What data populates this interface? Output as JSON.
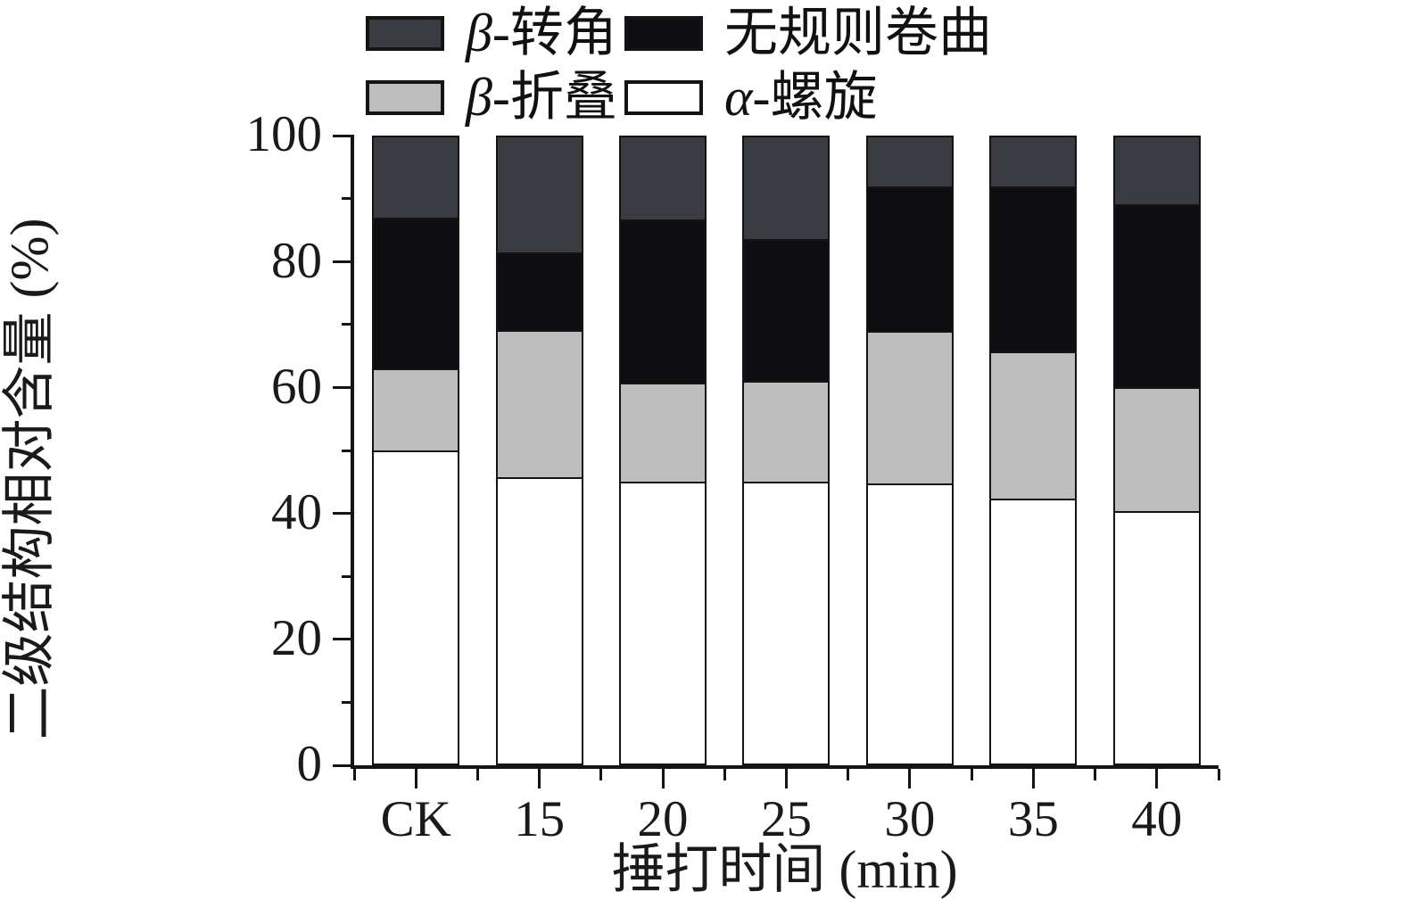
{
  "chart_data": {
    "type": "bar",
    "stacked": true,
    "orientation": "vertical",
    "categories": [
      "CK",
      "15",
      "20",
      "25",
      "30",
      "35",
      "40"
    ],
    "series": [
      {
        "name": "α-螺旋",
        "symbol": "α",
        "label_rest": "-螺旋",
        "color": "#ffffff",
        "values": [
          50.0,
          45.7,
          45.0,
          45.0,
          44.8,
          42.3,
          40.3
        ]
      },
      {
        "name": "β-折叠",
        "symbol": "β",
        "label_rest": "-折叠",
        "color": "#bdbdbd",
        "values": [
          13.0,
          23.4,
          15.8,
          16.0,
          24.2,
          23.4,
          19.8
        ]
      },
      {
        "name": "无规则卷曲",
        "symbol": "",
        "label_rest": "无规则卷曲",
        "color": "#0e0e10",
        "values": [
          24.0,
          12.3,
          25.9,
          22.6,
          23.0,
          26.3,
          29.0
        ]
      },
      {
        "name": "β-转角",
        "symbol": "β",
        "label_rest": "-转角",
        "color": "#3a3c42",
        "values": [
          13.0,
          18.6,
          13.3,
          16.4,
          8.0,
          8.0,
          10.9
        ]
      }
    ],
    "xlabel": "捶打时间 (min)",
    "ylabel": "二级结构相对含量 (%)",
    "ylim": [
      0,
      100
    ],
    "y_ticks": [
      0,
      20,
      40,
      60,
      80,
      100
    ],
    "y_minor_ticks": [
      10,
      30,
      50,
      70,
      90
    ],
    "legend_position": "top",
    "legend_order": [
      "β-转角",
      "无规则卷曲",
      "β-折叠",
      "α-螺旋"
    ],
    "grid": false
  }
}
